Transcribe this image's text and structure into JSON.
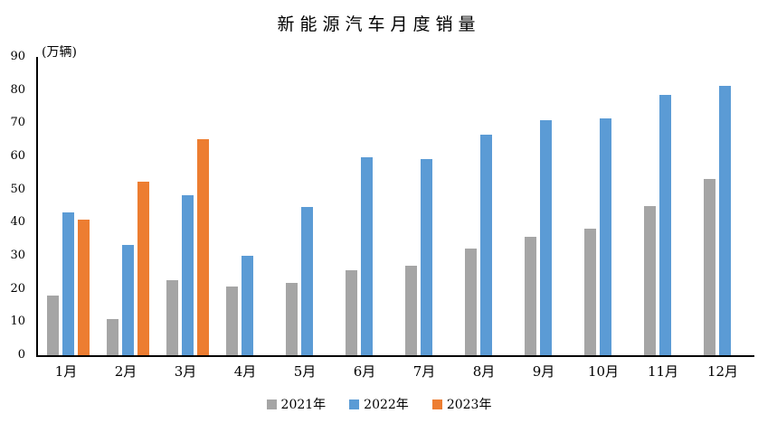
{
  "chart_data": {
    "type": "bar",
    "title": "新能源汽车月度销量",
    "ylabel": "(万辆)",
    "xlabel": "",
    "categories": [
      "1月",
      "2月",
      "3月",
      "4月",
      "5月",
      "6月",
      "7月",
      "8月",
      "9月",
      "10月",
      "11月",
      "12月"
    ],
    "series": [
      {
        "name": "2021年",
        "color": "#A5A5A5",
        "values": [
          17.9,
          11.0,
          22.6,
          20.6,
          21.7,
          25.6,
          27.1,
          32.1,
          35.7,
          38.3,
          45.0,
          53.1
        ]
      },
      {
        "name": "2022年",
        "color": "#5B9BD5",
        "values": [
          43.1,
          33.4,
          48.4,
          29.9,
          44.7,
          59.6,
          59.3,
          66.6,
          70.8,
          71.4,
          78.6,
          81.4
        ]
      },
      {
        "name": "2023年",
        "color": "#ED7D31",
        "values": [
          40.8,
          52.5,
          65.3,
          null,
          null,
          null,
          null,
          null,
          null,
          null,
          null,
          null
        ]
      }
    ],
    "ylim": [
      0,
      90
    ],
    "ytick_step": 10,
    "yticks": [
      0,
      10,
      20,
      30,
      40,
      50,
      60,
      70,
      80,
      90
    ],
    "grid": false,
    "legend_position": "bottom",
    "axis_color": "#000000",
    "text_color": "#000000"
  }
}
